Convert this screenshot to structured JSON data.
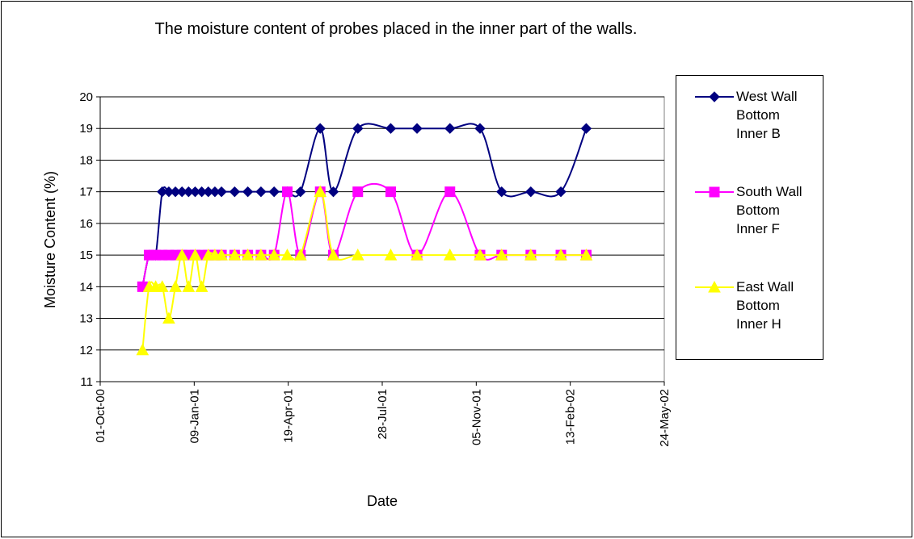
{
  "chart_data": {
    "type": "line",
    "title": "The moisture content of  probes placed in the inner part of the walls.",
    "x_label": "Date",
    "y_label": "Moisture Content (%)",
    "x": [
      "2000-11-15",
      "2000-11-22",
      "2000-11-29",
      "2000-12-06",
      "2000-12-13",
      "2000-12-20",
      "2000-12-27",
      "2001-01-03",
      "2001-01-10",
      "2001-01-17",
      "2001-01-24",
      "2001-01-31",
      "2001-02-07",
      "2001-02-21",
      "2001-03-07",
      "2001-03-21",
      "2001-04-04",
      "2001-04-18",
      "2001-05-02",
      "2001-05-23",
      "2001-06-06",
      "2001-07-02",
      "2001-08-06",
      "2001-09-03",
      "2001-10-08",
      "2001-11-09",
      "2001-12-02",
      "2002-01-02",
      "2002-02-03",
      "2002-03-02"
    ],
    "series": [
      {
        "name": "West Wall Bottom Inner B",
        "color": "#000080",
        "marker": "diamond",
        "values": [
          14,
          15,
          15,
          17,
          17,
          17,
          17,
          17,
          17,
          17,
          17,
          17,
          17,
          17,
          17,
          17,
          17,
          17,
          17,
          19,
          17,
          19,
          19,
          19,
          19,
          19,
          17,
          17,
          17,
          19
        ]
      },
      {
        "name": "South Wall Bottom Inner F",
        "color": "#FF00FF",
        "marker": "square",
        "values": [
          14,
          15,
          15,
          15,
          15,
          15,
          15,
          15,
          15,
          15,
          15,
          15,
          15,
          15,
          15,
          15,
          15,
          17,
          15,
          17,
          15,
          17,
          17,
          15,
          17,
          15,
          15,
          15,
          15,
          15
        ]
      },
      {
        "name": "East Wall Bottom Inner H",
        "color": "#FFFF00",
        "marker": "triangle",
        "values": [
          12,
          14,
          14,
          14,
          13,
          14,
          15,
          14,
          15,
          14,
          15,
          15,
          15,
          15,
          15,
          15,
          15,
          15,
          15,
          17,
          15,
          15,
          15,
          15,
          15,
          15,
          15,
          15,
          15,
          15
        ]
      }
    ],
    "xlim": [
      "2000-10-01",
      "2002-05-24"
    ],
    "xticks": [
      {
        "value": "2000-10-01",
        "label": "01-Oct-00"
      },
      {
        "value": "2001-01-09",
        "label": "09-Jan-01"
      },
      {
        "value": "2001-04-19",
        "label": "19-Apr-01"
      },
      {
        "value": "2001-07-28",
        "label": "28-Jul-01"
      },
      {
        "value": "2001-11-05",
        "label": "05-Nov-01"
      },
      {
        "value": "2002-02-13",
        "label": "13-Feb-02"
      },
      {
        "value": "2002-05-24",
        "label": "24-May-02"
      }
    ],
    "ylim": [
      11,
      20
    ],
    "yticks": [
      11,
      12,
      13,
      14,
      15,
      16,
      17,
      18,
      19,
      20
    ],
    "grid": true,
    "smooth": true,
    "legend": "right"
  }
}
